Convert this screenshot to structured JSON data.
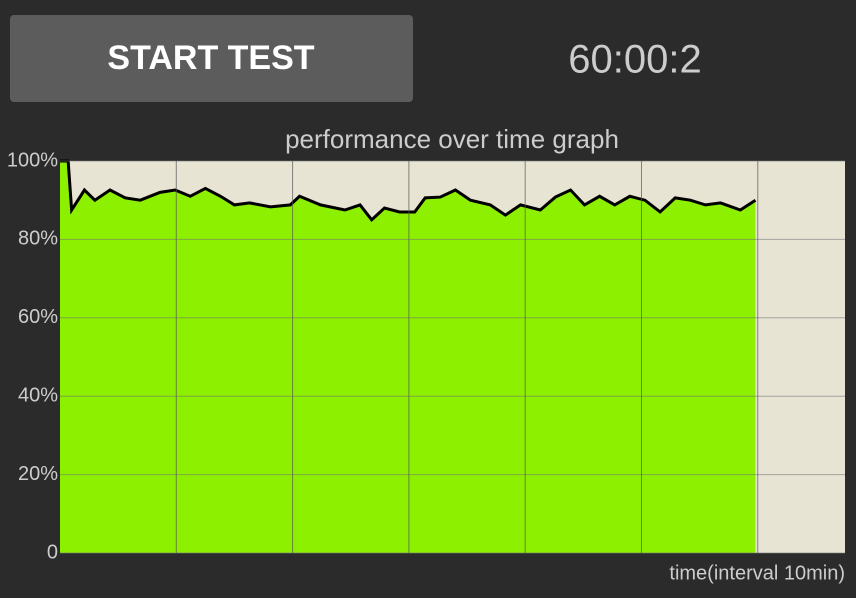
{
  "button": {
    "label": "START TEST"
  },
  "timer": "60:00:2",
  "chart_data": {
    "type": "area",
    "title": "performance over time graph",
    "x_label": "time(interval 10min)",
    "x": [
      0,
      0.7,
      1.0,
      2.1,
      3.0,
      4.3,
      5.6,
      6.9,
      8.6,
      9.9,
      11.2,
      12.5,
      13.8,
      15.0,
      16.3,
      18.1,
      19.8,
      20.6,
      22.4,
      24.5,
      25.8,
      26.8,
      27.9,
      29.2,
      30.5,
      31.4,
      32.7,
      34.0,
      35.3,
      37.0,
      38.3,
      39.6,
      41.3,
      42.6,
      43.9,
      45.1,
      46.4,
      47.7,
      49.0,
      50.3,
      51.6,
      52.9,
      54.2,
      55.5,
      56.8,
      58.5,
      59.8
    ],
    "values": [
      100,
      100,
      87.5,
      92.6,
      90,
      92.6,
      90.6,
      90,
      92,
      92.6,
      91,
      93,
      91,
      88.8,
      89.3,
      88.3,
      88.8,
      91,
      88.8,
      87.5,
      88.8,
      85,
      88,
      87,
      87,
      90.6,
      90.8,
      92.6,
      90,
      88.8,
      86.2,
      88.8,
      87.5,
      90.8,
      92.6,
      88.8,
      91,
      88.8,
      91,
      90,
      87,
      90.6,
      90,
      88.8,
      89.3,
      87.5,
      90
    ],
    "color": "#8cf000",
    "line_color": "#000000",
    "xlim": [
      0,
      67.5
    ],
    "xticks": [
      10,
      20,
      30,
      40,
      50,
      60
    ],
    "ylim": [
      0,
      100
    ],
    "yticks": [
      0,
      {
        "value": 20,
        "label": "20%"
      },
      {
        "value": 40,
        "label": "40%"
      },
      {
        "value": 60,
        "label": "60%"
      },
      {
        "value": 80,
        "label": "80%"
      },
      {
        "value": 100,
        "label": "100%"
      }
    ],
    "grid": true
  }
}
